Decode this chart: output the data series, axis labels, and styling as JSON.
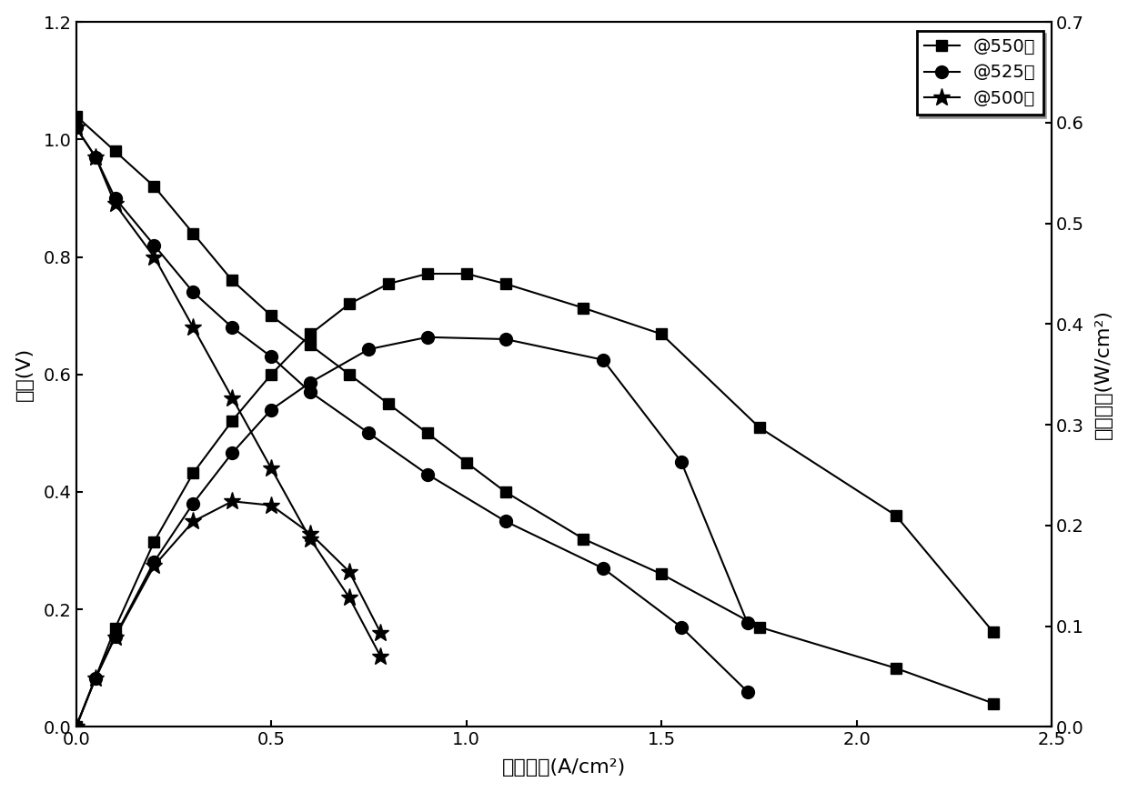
{
  "xlabel": "电流密度(A/cm²)",
  "ylabel_left": "电压(V)",
  "ylabel_right": "功率密度(W/cm²)",
  "xlim": [
    0.0,
    2.5
  ],
  "ylim_left": [
    0.0,
    1.2
  ],
  "ylim_right": [
    0.0,
    0.7
  ],
  "legend_labels": [
    "@550度",
    "@525度",
    "@500度"
  ],
  "v550": [
    1.04,
    0.98,
    0.92,
    0.84,
    0.76,
    0.7,
    0.65,
    0.6,
    0.55,
    0.5,
    0.45,
    0.4,
    0.32,
    0.26,
    0.17,
    0.1,
    0.04
  ],
  "i550": [
    0.0,
    0.1,
    0.2,
    0.3,
    0.4,
    0.5,
    0.6,
    0.7,
    0.8,
    0.9,
    1.0,
    1.1,
    1.3,
    1.5,
    1.75,
    2.1,
    2.35
  ],
  "v525": [
    1.02,
    0.97,
    0.9,
    0.82,
    0.74,
    0.68,
    0.63,
    0.57,
    0.5,
    0.43,
    0.35,
    0.27,
    0.17,
    0.06
  ],
  "i525": [
    0.0,
    0.05,
    0.1,
    0.2,
    0.3,
    0.4,
    0.5,
    0.6,
    0.75,
    0.9,
    1.1,
    1.35,
    1.55,
    1.72
  ],
  "v500": [
    1.02,
    0.97,
    0.89,
    0.8,
    0.68,
    0.56,
    0.44,
    0.32,
    0.22,
    0.12
  ],
  "i500": [
    0.0,
    0.05,
    0.1,
    0.2,
    0.3,
    0.4,
    0.5,
    0.6,
    0.7,
    0.78
  ],
  "p550": [
    0.0,
    0.098,
    0.184,
    0.252,
    0.304,
    0.35,
    0.39,
    0.42,
    0.44,
    0.45,
    0.45,
    0.44,
    0.416,
    0.39,
    0.2975,
    0.21,
    0.094
  ],
  "ip550": [
    0.0,
    0.1,
    0.2,
    0.3,
    0.4,
    0.5,
    0.6,
    0.7,
    0.8,
    0.9,
    1.0,
    1.1,
    1.3,
    1.5,
    1.75,
    2.1,
    2.35
  ],
  "p525": [
    0.0,
    0.0485,
    0.09,
    0.164,
    0.222,
    0.272,
    0.315,
    0.342,
    0.375,
    0.387,
    0.385,
    0.3645,
    0.2635,
    0.1032
  ],
  "ip525": [
    0.0,
    0.05,
    0.1,
    0.2,
    0.3,
    0.4,
    0.5,
    0.6,
    0.75,
    0.9,
    1.1,
    1.35,
    1.55,
    1.72
  ],
  "p500": [
    0.0,
    0.0485,
    0.089,
    0.16,
    0.204,
    0.224,
    0.22,
    0.192,
    0.154,
    0.0936
  ],
  "ip500": [
    0.0,
    0.05,
    0.1,
    0.2,
    0.3,
    0.4,
    0.5,
    0.6,
    0.7,
    0.78
  ],
  "line_color": "#000000",
  "markersize_sq": 8,
  "markersize_ci": 10,
  "markersize_st": 14,
  "linewidth": 1.5,
  "xticks": [
    0.0,
    0.5,
    1.0,
    1.5,
    2.0,
    2.5
  ],
  "yticks_left": [
    0.0,
    0.2,
    0.4,
    0.6,
    0.8,
    1.0,
    1.2
  ],
  "yticks_right": [
    0.0,
    0.1,
    0.2,
    0.3,
    0.4,
    0.5,
    0.6,
    0.7
  ]
}
